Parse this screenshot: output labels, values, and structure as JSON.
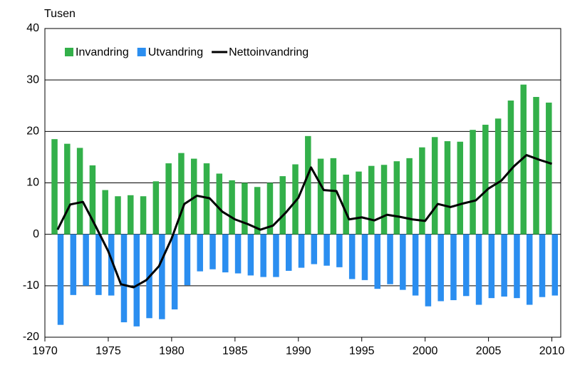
{
  "chart_data": {
    "type": "bar",
    "y_label": "Tusen",
    "x": [
      1971,
      1972,
      1973,
      1974,
      1975,
      1976,
      1977,
      1978,
      1979,
      1980,
      1981,
      1982,
      1983,
      1984,
      1985,
      1986,
      1987,
      1988,
      1989,
      1990,
      1991,
      1992,
      1993,
      1994,
      1995,
      1996,
      1997,
      1998,
      1999,
      2000,
      2001,
      2002,
      2003,
      2004,
      2005,
      2006,
      2007,
      2008,
      2009,
      2010
    ],
    "series": [
      {
        "name": "Invandring",
        "type": "bar",
        "color": "#33b04a",
        "values": [
          18.5,
          17.6,
          16.8,
          13.4,
          8.6,
          7.4,
          7.6,
          7.4,
          10.3,
          13.8,
          15.8,
          14.7,
          13.8,
          11.8,
          10.5,
          10.0,
          9.2,
          10.0,
          11.3,
          13.6,
          19.1,
          14.7,
          14.8,
          11.6,
          12.2,
          13.3,
          13.5,
          14.2,
          14.8,
          16.9,
          18.9,
          18.1,
          18.0,
          20.3,
          21.3,
          22.5,
          26.0,
          29.1,
          26.7,
          25.6
        ]
      },
      {
        "name": "Utvandring",
        "type": "bar",
        "color": "#2b8ef0",
        "values": [
          -17.6,
          -11.8,
          -10.0,
          -11.8,
          -11.9,
          -17.1,
          -17.9,
          -16.3,
          -16.5,
          -14.6,
          -9.9,
          -7.2,
          -6.8,
          -7.4,
          -7.6,
          -8.0,
          -8.3,
          -8.3,
          -7.1,
          -6.5,
          -5.8,
          -6.1,
          -6.4,
          -8.7,
          -8.9,
          -10.6,
          -9.7,
          -10.8,
          -11.9,
          -14.0,
          -13.0,
          -12.8,
          -12.0,
          -13.7,
          -12.4,
          -12.1,
          -12.4,
          -13.7,
          -12.2,
          -11.9
        ]
      },
      {
        "name": "Nettoinvandring",
        "type": "line",
        "color": "#000000",
        "values": [
          0.9,
          5.8,
          6.3,
          1.6,
          -3.3,
          -9.7,
          -10.3,
          -8.9,
          -6.2,
          -0.8,
          5.9,
          7.5,
          7.0,
          4.4,
          2.9,
          2.0,
          0.9,
          1.7,
          4.2,
          7.1,
          13.0,
          8.6,
          8.4,
          2.9,
          3.3,
          2.7,
          3.8,
          3.4,
          2.9,
          2.6,
          5.9,
          5.3,
          6.0,
          6.6,
          8.9,
          10.4,
          13.2,
          15.4,
          14.5,
          13.7
        ]
      }
    ],
    "xlim": [
      1970,
      2010.7
    ],
    "xticks": [
      1970,
      1975,
      1980,
      1985,
      1990,
      1995,
      2000,
      2005,
      2010
    ],
    "ylim": [
      -20,
      40
    ],
    "yticks": [
      -20,
      -10,
      0,
      10,
      20,
      30,
      40
    ],
    "grid": true,
    "legend": "top-left"
  }
}
